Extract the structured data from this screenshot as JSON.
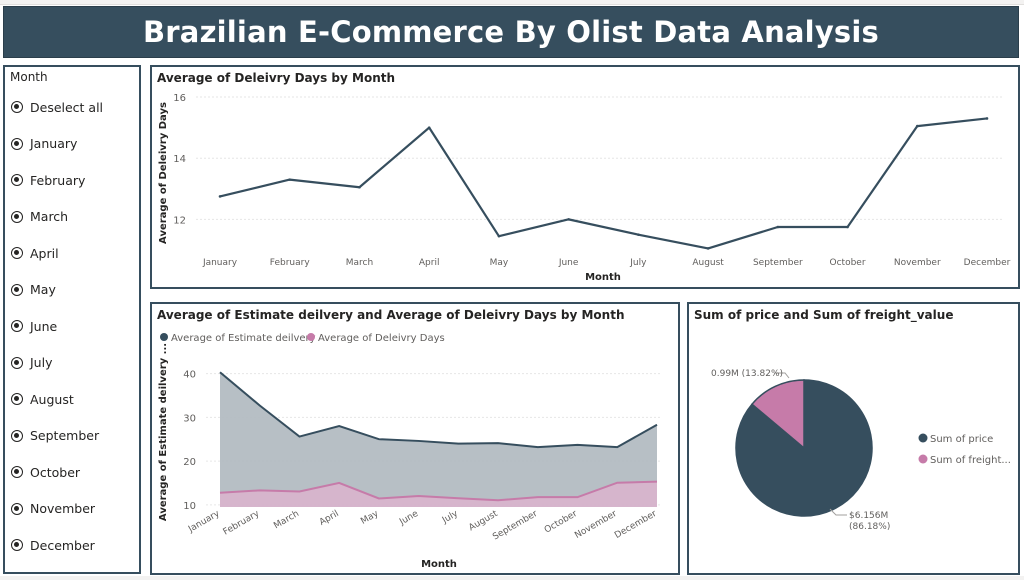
{
  "dashboard_title": "Brazilian E-Commerce By Olist Data Analysis",
  "slicer": {
    "title": "Month",
    "items": [
      "Deselect all",
      "January",
      "February",
      "March",
      "April",
      "May",
      "June",
      "July",
      "August",
      "September",
      "October",
      "November",
      "December"
    ]
  },
  "colors": {
    "dark": "#364e5e",
    "pink": "#c67ba9",
    "area_fill": "#b3bcc2",
    "grid": "#e6e6e6",
    "axis_text": "#605e5c"
  },
  "chart_data": [
    {
      "type": "line",
      "title": "Average of Deleivry Days by Month",
      "xlabel": "Month",
      "ylabel": "Average of Deleivry Days",
      "categories": [
        "January",
        "February",
        "March",
        "April",
        "May",
        "June",
        "July",
        "August",
        "September",
        "October",
        "November",
        "December"
      ],
      "series": [
        {
          "name": "Average of Deleivry Days",
          "values": [
            12.75,
            13.3,
            13.05,
            15.0,
            11.45,
            12.0,
            11.5,
            11.05,
            11.75,
            11.75,
            15.05,
            15.3
          ]
        }
      ],
      "yticks": [
        12,
        14,
        16
      ],
      "ylim": [
        10.9,
        16.1
      ],
      "grid": true
    },
    {
      "type": "area",
      "title": "Average of Estimate deilvery and Average of Deleivry Days by Month",
      "xlabel": "Month",
      "ylabel": "Average of Estimate deilvery ...",
      "categories": [
        "January",
        "February",
        "March",
        "April",
        "May",
        "June",
        "July",
        "August",
        "September",
        "October",
        "November",
        "December"
      ],
      "series": [
        {
          "name": "Average of Estimate deilvery",
          "values": [
            40.3,
            32.7,
            25.6,
            28.0,
            25.0,
            24.6,
            24.0,
            24.1,
            23.2,
            23.7,
            23.2,
            28.3
          ]
        },
        {
          "name": "Average of Deleivry Days",
          "values": [
            12.75,
            13.3,
            13.05,
            15.0,
            11.45,
            12.0,
            11.5,
            11.05,
            11.75,
            11.75,
            15.05,
            15.3
          ]
        }
      ],
      "yticks": [
        10,
        20,
        30,
        40
      ],
      "ylim": [
        9.5,
        41.5
      ],
      "legend": "top-left",
      "grid": true
    },
    {
      "type": "pie",
      "title": "Sum of price and Sum of freight_value",
      "slices": [
        {
          "name": "Sum of price",
          "value": 6.156,
          "label": "$6.156M",
          "pct": "(86.18%)"
        },
        {
          "name": "Sum of freight...",
          "value": 0.99,
          "label": "0.99M (13.82%)",
          "pct": ""
        }
      ],
      "legend": "right"
    }
  ]
}
